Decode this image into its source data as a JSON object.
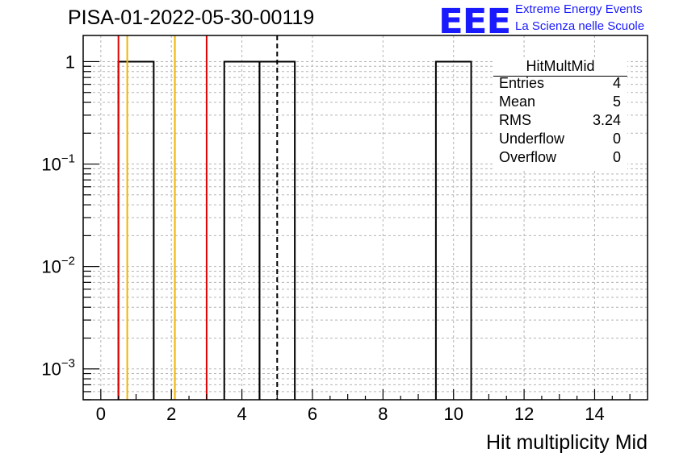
{
  "header": {
    "run_title": "PISA-01-2022-05-30-00119",
    "logo_mark": "EEE",
    "logo_line1": "Extreme Energy Events",
    "logo_line2": "La Scienza nelle Scuole"
  },
  "stats_box": {
    "title": "HitMultMid",
    "rows": [
      {
        "label": "Entries",
        "value": "4"
      },
      {
        "label": "Mean",
        "value": "5"
      },
      {
        "label": "RMS",
        "value": "3.24"
      },
      {
        "label": "Underflow",
        "value": "0"
      },
      {
        "label": "Overflow",
        "value": "0"
      }
    ]
  },
  "chart_data": {
    "type": "bar",
    "histogram": "step",
    "title": "PISA-01-2022-05-30-00119",
    "xlabel": "Hit multiplicity Mid",
    "ylabel": "",
    "xlim": [
      -0.5,
      15.5
    ],
    "ylim": [
      0.0005,
      1.8
    ],
    "yscale": "log",
    "grid": true,
    "bin_width": 1,
    "bins": [
      {
        "center": 1,
        "value": 1
      },
      {
        "center": 4,
        "value": 1
      },
      {
        "center": 5,
        "value": 1
      },
      {
        "center": 10,
        "value": 1
      }
    ],
    "x_ticks": [
      0,
      2,
      4,
      6,
      8,
      10,
      12,
      14
    ],
    "x_tick_labels": [
      "0",
      "2",
      "4",
      "6",
      "8",
      "10",
      "12",
      "14"
    ],
    "y_ticks": [
      {
        "value": 1,
        "mantissa": "1",
        "exponent": ""
      },
      {
        "value": 0.1,
        "mantissa": "10",
        "exponent": "−1"
      },
      {
        "value": 0.01,
        "mantissa": "10",
        "exponent": "−2"
      },
      {
        "value": 0.001,
        "mantissa": "10",
        "exponent": "−3"
      }
    ],
    "markers": [
      {
        "x": 0.5,
        "color": "#e00000",
        "style": "solid"
      },
      {
        "x": 0.75,
        "color": "#f0b400",
        "style": "solid"
      },
      {
        "x": 2.1,
        "color": "#f0b400",
        "style": "solid"
      },
      {
        "x": 3.0,
        "color": "#e00000",
        "style": "solid"
      },
      {
        "x": 5.0,
        "color": "#000000",
        "style": "dashed"
      }
    ]
  }
}
